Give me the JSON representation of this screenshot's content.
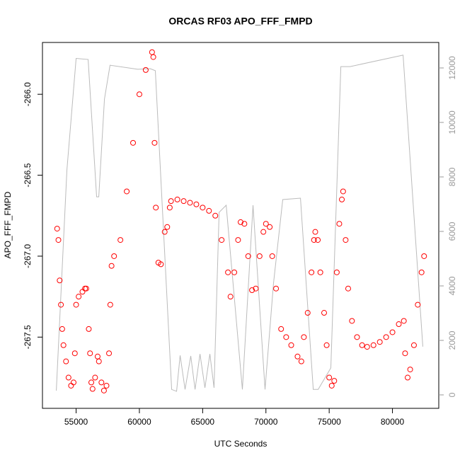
{
  "chart_data": {
    "type": "scatter",
    "title": "ORCAS RF03 APO_FFF_FMPD",
    "xlabel": "UTC Seconds",
    "ylabel": "APO_FFF_FMPD",
    "xlim": [
      52340,
      83660
    ],
    "xticks": [
      55000,
      60000,
      65000,
      70000,
      75000,
      80000
    ],
    "ylim": [
      -267.94,
      -265.68
    ],
    "yticks": [
      {
        "value": -266.0,
        "label": "-266.0"
      },
      {
        "value": -266.5,
        "label": "-266.5"
      },
      {
        "value": -267.0,
        "label": "-267.0"
      },
      {
        "value": -267.5,
        "label": "-267.5"
      }
    ],
    "y2lim": [
      -494,
      12935
    ],
    "y2ticks": [
      0,
      2000,
      4000,
      6000,
      8000,
      10000,
      12000
    ],
    "series": [
      {
        "color": "#ff0000",
        "style": "points",
        "x": [
          53500,
          53600,
          53700,
          53800,
          53900,
          54000,
          54200,
          54400,
          54600,
          54800,
          54900,
          55000,
          55200,
          55500,
          55700,
          55800,
          56000,
          56100,
          56200,
          56300,
          56500,
          56700,
          56800,
          57000,
          57200,
          57400,
          57600,
          57700,
          57800,
          58000,
          58500,
          59000,
          59500,
          60000,
          60500,
          61000,
          61100,
          61200,
          61300,
          61500,
          61700,
          62000,
          62200,
          62400,
          62500,
          63000,
          63500,
          64000,
          64500,
          65000,
          65500,
          66000,
          66500,
          67000,
          67200,
          67500,
          67800,
          68000,
          68300,
          68600,
          68900,
          69200,
          69500,
          69800,
          70000,
          70300,
          70500,
          70800,
          71200,
          71600,
          72000,
          72500,
          72800,
          73000,
          73300,
          73600,
          73800,
          73900,
          74100,
          74300,
          74600,
          74800,
          75000,
          75200,
          75400,
          75600,
          75800,
          76000,
          76100,
          76300,
          76500,
          76800,
          77200,
          77600,
          78000,
          78500,
          79000,
          79500,
          80000,
          80500,
          80900,
          81000,
          81200,
          81400,
          81700,
          82000,
          82300,
          82500
        ],
        "values": [
          -266.83,
          -266.9,
          -267.15,
          -267.3,
          -267.45,
          -267.55,
          -267.65,
          -267.75,
          -267.8,
          -267.78,
          -267.6,
          -267.3,
          -267.25,
          -267.22,
          -267.2,
          -267.2,
          -267.45,
          -267.6,
          -267.78,
          -267.82,
          -267.75,
          -267.62,
          -267.65,
          -267.78,
          -267.83,
          -267.8,
          -267.6,
          -267.3,
          -267.06,
          -267.0,
          -266.9,
          -266.6,
          -266.3,
          -266.0,
          -265.85,
          -265.74,
          -265.77,
          -266.3,
          -266.7,
          -267.04,
          -267.05,
          -266.85,
          -266.82,
          -266.7,
          -266.66,
          -266.65,
          -266.66,
          -266.67,
          -266.68,
          -266.7,
          -266.72,
          -266.75,
          -266.9,
          -267.1,
          -267.25,
          -267.1,
          -266.9,
          -266.79,
          -266.8,
          -267.0,
          -267.21,
          -267.2,
          -267.0,
          -266.85,
          -266.8,
          -266.82,
          -267.0,
          -267.2,
          -267.45,
          -267.5,
          -267.55,
          -267.62,
          -267.65,
          -267.5,
          -267.35,
          -267.1,
          -266.9,
          -266.85,
          -266.9,
          -267.1,
          -267.35,
          -267.55,
          -267.75,
          -267.8,
          -267.77,
          -267.1,
          -266.8,
          -266.65,
          -266.6,
          -266.9,
          -267.2,
          -267.4,
          -267.5,
          -267.55,
          -267.56,
          -267.55,
          -267.53,
          -267.5,
          -267.47,
          -267.42,
          -267.4,
          -267.6,
          -267.75,
          -267.7,
          -267.55,
          -267.3,
          -267.1,
          -267.0
        ]
      },
      {
        "color": "#bbbbbb",
        "style": "line",
        "axis": "y2",
        "x": [
          53434,
          54273,
          55000,
          55950,
          56620,
          56790,
          57240,
          57680,
          59870,
          60870,
          61260,
          62550,
          62940,
          63220,
          63610,
          64060,
          64400,
          64790,
          65180,
          65570,
          65900,
          66300,
          66860,
          68140,
          68980,
          69930,
          70600,
          71330,
          72730,
          73740,
          74130,
          75130,
          75920,
          76650,
          80840,
          82400
        ],
        "values": [
          156,
          8260,
          12350,
          12310,
          7270,
          7270,
          10860,
          12100,
          11950,
          11970,
          11900,
          200,
          130,
          1450,
          200,
          1430,
          200,
          1500,
          260,
          1500,
          260,
          6700,
          6960,
          200,
          6960,
          200,
          4100,
          7170,
          7220,
          200,
          200,
          990,
          12050,
          12050,
          12470,
          1770
        ]
      }
    ]
  }
}
